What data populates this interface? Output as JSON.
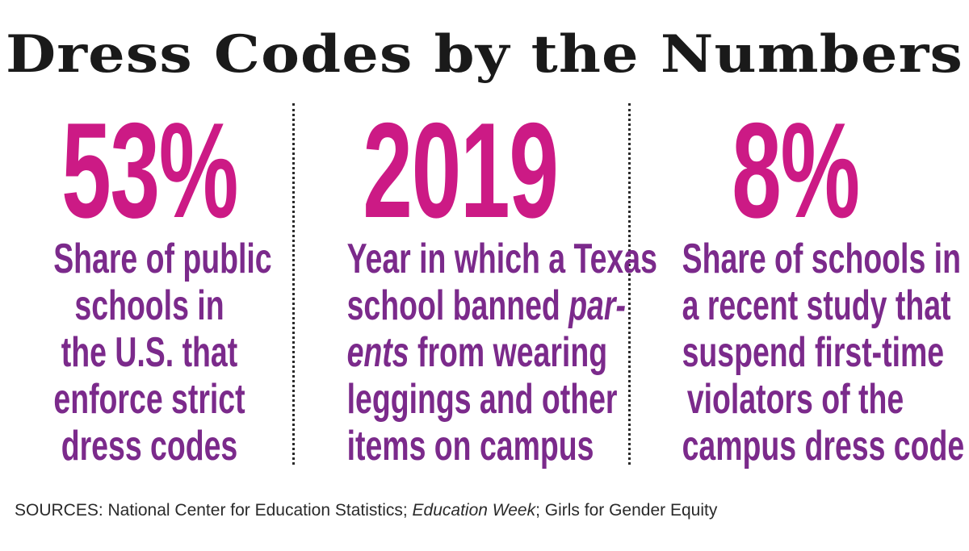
{
  "title": "Dress Codes by the Numbers",
  "stats": [
    {
      "value": "53%",
      "lines": [
        "Share of public",
        "schools in",
        "the U.S. that",
        "enforce strict",
        "dress codes"
      ]
    },
    {
      "value": "2019",
      "line1": "Year in which a Texas",
      "line2_prefix": "school banned ",
      "line2_italic": "par-",
      "line3_italic": "ents",
      "line3_suffix": " from wearing",
      "line4": "leggings and other",
      "line5": "items on campus"
    },
    {
      "value": "8%",
      "lines": [
        "Share of schools in",
        "a recent study that",
        "suspend first-time",
        "violators of the",
        "campus dress code"
      ]
    }
  ],
  "sources": {
    "prefix": "SOURCES: National Center for Education Statistics; ",
    "italic": "Education Week",
    "suffix": "; Girls for Gender Equity"
  },
  "colors": {
    "stat": "#cc1a85",
    "description": "#7b2a8b",
    "title": "#1a1a1a"
  }
}
